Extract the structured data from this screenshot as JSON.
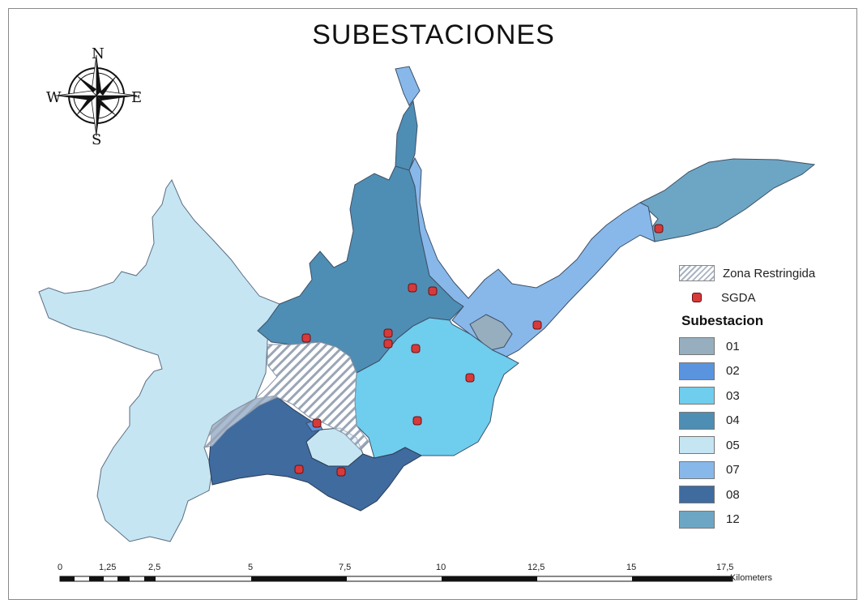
{
  "title": "SUBESTACIONES",
  "compass": {
    "n": "N",
    "s": "S",
    "e": "E",
    "w": "W"
  },
  "legend": {
    "restricted_label": "Zona Restringida",
    "sgda_label": "SGDA",
    "heading": "Subestacion",
    "classes": [
      {
        "code": "01",
        "color": "#97aebe"
      },
      {
        "code": "02",
        "color": "#5a94de"
      },
      {
        "code": "03",
        "color": "#6fcdee"
      },
      {
        "code": "04",
        "color": "#4e8eb4"
      },
      {
        "code": "05",
        "color": "#c5e5f3"
      },
      {
        "code": "07",
        "color": "#88b8ea"
      },
      {
        "code": "08",
        "color": "#3f6b9f"
      },
      {
        "code": "12",
        "color": "#6da6c4"
      }
    ]
  },
  "scale_bar": {
    "ticks": [
      "0",
      "1,25",
      "2,5",
      "5",
      "7,5",
      "10",
      "12,5",
      "15",
      "17,5"
    ],
    "unit": "Kilometers"
  }
}
